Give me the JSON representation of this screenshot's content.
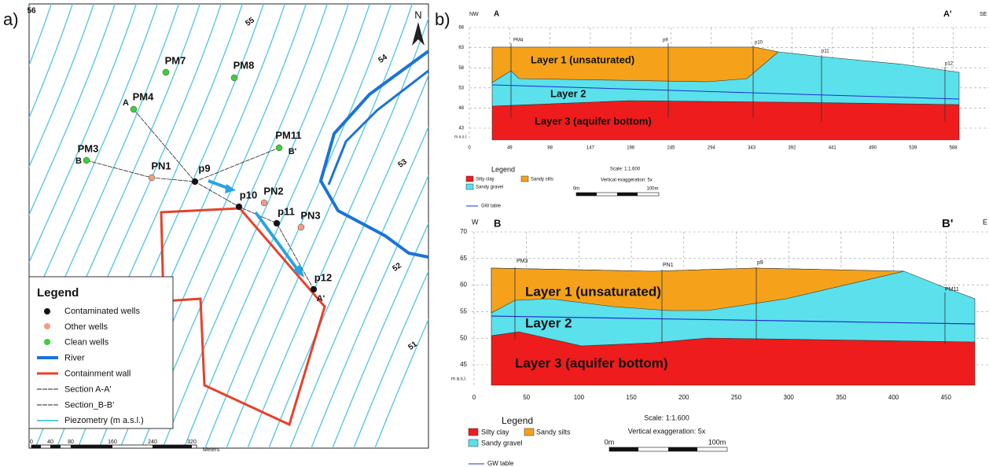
{
  "panel_a": {
    "label": "a)",
    "north": "N",
    "contour_labels": [
      "56",
      "55",
      "54",
      "53",
      "52",
      "51"
    ],
    "wells": [
      "PM7",
      "PM8",
      "PM4",
      "PM11",
      "PM3",
      "PN1",
      "p9",
      "p10",
      "PN2",
      "p11",
      "PN3",
      "p12"
    ],
    "section_ends": [
      "A",
      "B",
      "B'",
      "A'"
    ],
    "legend": {
      "title": "Legend",
      "items": [
        "Contaminated wells",
        "Other wells",
        "Clean wells",
        "River",
        "Containment wall",
        "Section A-A'",
        "Section_B-B'",
        "Piezometry (m a.s.l.)"
      ]
    },
    "scale": {
      "ticks": [
        0,
        40,
        80,
        160,
        240,
        320
      ],
      "unit": "Meters"
    }
  },
  "panel_b": {
    "label": "b)",
    "section_1": {
      "left_dir": "NW",
      "right_dir": "SE",
      "start": "A",
      "end": "A'",
      "y_unit": "m a.s.l.",
      "yticks": [
        68,
        63,
        58,
        53,
        48,
        43
      ],
      "xticks": [
        0,
        49,
        98,
        147,
        196,
        245,
        294,
        343,
        392,
        441,
        490,
        539,
        588
      ],
      "wells": [
        "PM4",
        "p9",
        "p10",
        "p11",
        "p12"
      ],
      "layers": [
        "Layer 1 (unsaturated)",
        "Layer 2",
        "Layer 3 (aquifer bottom)"
      ],
      "legend": {
        "title": "Legend",
        "items": [
          "Silty clay",
          "Sandy silts",
          "Sandy gravel"
        ],
        "scale": "Scale: 1:1.600",
        "exaggeration": "Vertical exaggeration: 5x",
        "scale_start": "0m",
        "scale_end": "100m",
        "gw": "GW table"
      }
    },
    "section_2": {
      "left_dir": "W",
      "right_dir": "E",
      "start": "B",
      "end": "B'",
      "y_unit": "m a.s.l.",
      "yticks": [
        70,
        65,
        60,
        55,
        50,
        45
      ],
      "xticks": [
        0,
        50,
        100,
        150,
        200,
        250,
        300,
        350,
        400,
        450
      ],
      "wells": [
        "PM3",
        "PN1",
        "p9",
        "PM11"
      ],
      "layers": [
        "Layer 1 (unsaturated)",
        "Layer 2",
        "Layer 3 (aquifer bottom)"
      ],
      "legend": {
        "title": "Legend",
        "items": [
          "Silty clay",
          "Sandy silts",
          "Sandy gravel"
        ],
        "scale": "Scale: 1:1.600",
        "exaggeration": "Vertical exaggeration: 5x",
        "scale_start": "0m",
        "scale_end": "100m",
        "gw": "GW table"
      }
    }
  }
}
